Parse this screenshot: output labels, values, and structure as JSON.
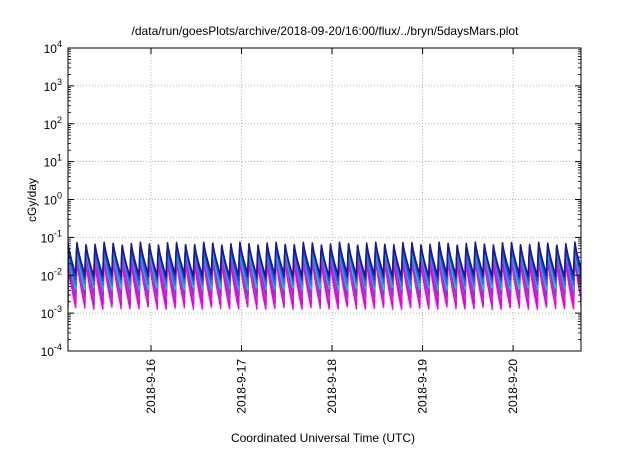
{
  "chart_data": {
    "type": "line",
    "title": "/data/run/goesPlots/archive/2018-09-20/16:00/flux/../bryn/5daysMars.plot",
    "xlabel": "Coordinated Universal Time (UTC)",
    "ylabel": "cGy/day",
    "y_scale": "log",
    "ylim": [
      0.0001,
      10000
    ],
    "y_ticks": [
      {
        "value": 0.0001,
        "base": "10",
        "exp": "-4"
      },
      {
        "value": 0.001,
        "base": "10",
        "exp": "-3"
      },
      {
        "value": 0.01,
        "base": "10",
        "exp": "-2"
      },
      {
        "value": 0.1,
        "base": "10",
        "exp": "-1"
      },
      {
        "value": 1,
        "base": "10",
        "exp": "0"
      },
      {
        "value": 10,
        "base": "10",
        "exp": "1"
      },
      {
        "value": 100,
        "base": "10",
        "exp": "2"
      },
      {
        "value": 1000,
        "base": "10",
        "exp": "3"
      },
      {
        "value": 10000,
        "base": "10",
        "exp": "4"
      }
    ],
    "xlim": [
      "2018-09-15T02:00",
      "2018-09-20T18:00"
    ],
    "x_ticks": [
      {
        "value": "2018-09-16T00:00",
        "label": "2018-9-16"
      },
      {
        "value": "2018-09-17T00:00",
        "label": "2018-9-17"
      },
      {
        "value": "2018-09-18T00:00",
        "label": "2018-9-18"
      },
      {
        "value": "2018-09-19T00:00",
        "label": "2018-9-19"
      },
      {
        "value": "2018-09-20T00:00",
        "label": "2018-9-20"
      }
    ],
    "grid": true,
    "legend": "none",
    "oscillation_period_hours": 2.4,
    "series": [
      {
        "color": "#ff00ff",
        "peak": 0.03,
        "trough": 0.0014
      },
      {
        "color": "#dd00dd",
        "peak": 0.036,
        "trough": 0.0018
      },
      {
        "color": "#cc33cc",
        "peak": 0.045,
        "trough": 0.0024
      },
      {
        "color": "#9933cc",
        "peak": 0.052,
        "trough": 0.003
      },
      {
        "color": "#00cccc",
        "peak": 0.06,
        "trough": 0.0045
      },
      {
        "color": "#3366ff",
        "peak": 0.066,
        "trough": 0.006
      },
      {
        "color": "#2244cc",
        "peak": 0.072,
        "trough": 0.008
      },
      {
        "color": "#1a1a80",
        "peak": 0.078,
        "trough": 0.01
      }
    ]
  }
}
